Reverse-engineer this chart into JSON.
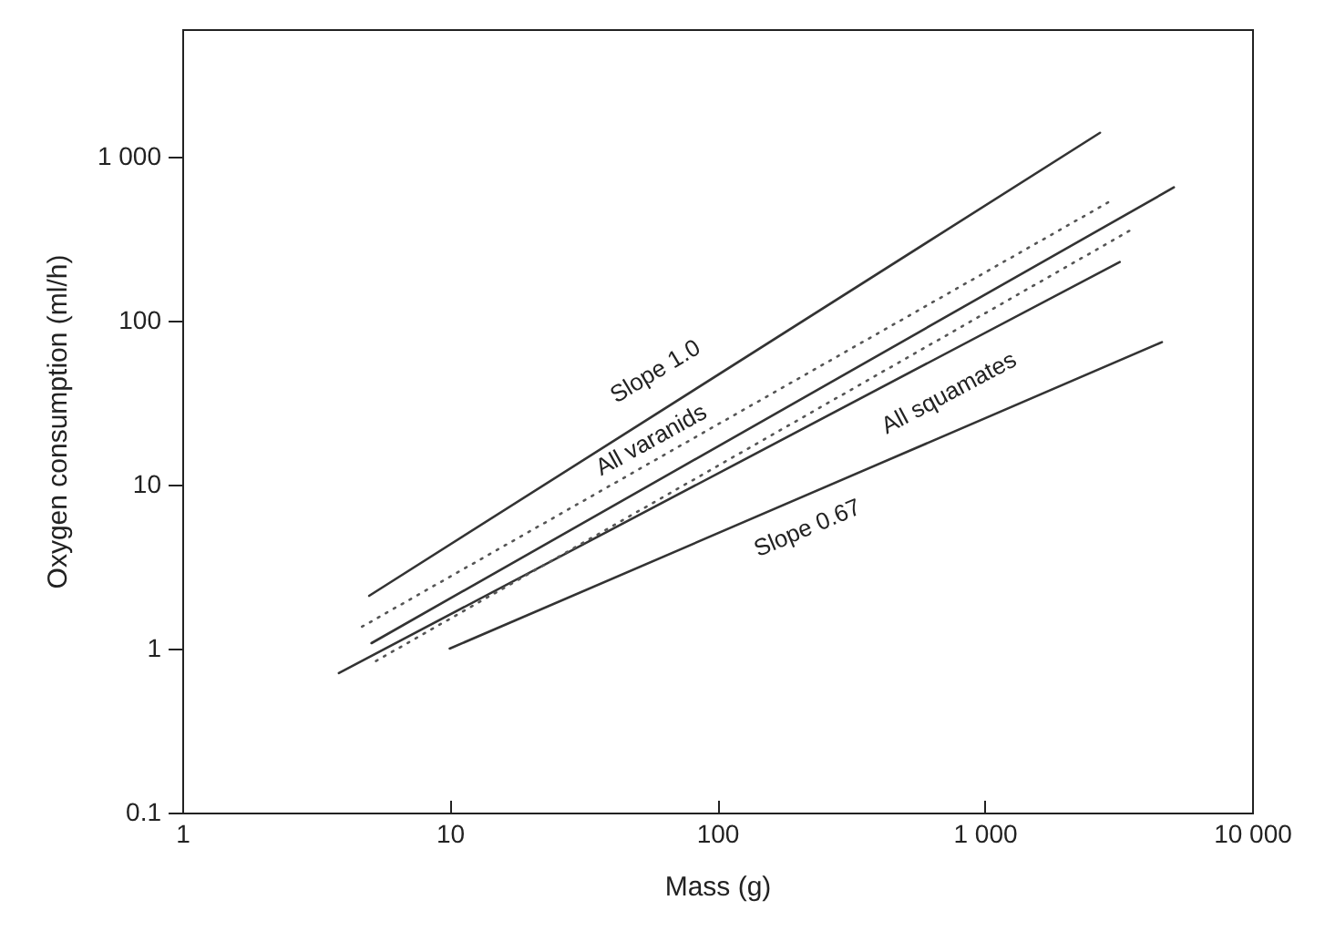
{
  "chart_data": {
    "type": "line",
    "xlabel": "Mass (g)",
    "ylabel": "Oxygen consumption (ml/h)",
    "log": "xy",
    "grid": false,
    "marker": "none",
    "xlim": [
      1,
      10000
    ],
    "ylim": [
      0.1,
      6000
    ],
    "xticks": [
      1,
      10,
      100,
      {
        "value": 1000,
        "label": "1 000"
      },
      {
        "value": 10000,
        "label": "10 000"
      }
    ],
    "yticks": [
      0.1,
      1,
      10,
      100,
      {
        "value": 1000,
        "label": "1 000"
      }
    ],
    "series": [
      {
        "color": "#333333",
        "line_style": "solid",
        "x": [
          5,
          2700
        ],
        "values": [
          2.1,
          1400
        ]
      },
      {
        "color": "#333333",
        "line_style": "solid",
        "x": [
          10,
          4600
        ],
        "values": [
          1,
          74
        ]
      },
      {
        "color": "#333333",
        "line_style": "solid",
        "x": [
          5.1,
          5100
        ],
        "values": [
          1.08,
          650
        ]
      },
      {
        "color": "#333333",
        "line_style": "solid",
        "x": [
          3.85,
          3200
        ],
        "values": [
          0.71,
          228
        ]
      },
      {
        "color": "#555555",
        "line_style": "dotted",
        "x": [
          4.7,
          2900
        ],
        "values": [
          1.36,
          527
        ]
      },
      {
        "color": "#555555",
        "line_style": "dotted",
        "x": [
          5.3,
          3550
        ],
        "values": [
          0.84,
          360
        ]
      }
    ],
    "annotations": [
      {
        "text": "Slope 1.0",
        "x": 69,
        "y": 31.6
      },
      {
        "text": "All varanids",
        "x": 66.5,
        "y": 11.7
      },
      {
        "text": "All squamates",
        "x": 635,
        "y": 57
      },
      {
        "text": "Slope 0.67",
        "x": 196,
        "y": 8.1
      }
    ]
  }
}
